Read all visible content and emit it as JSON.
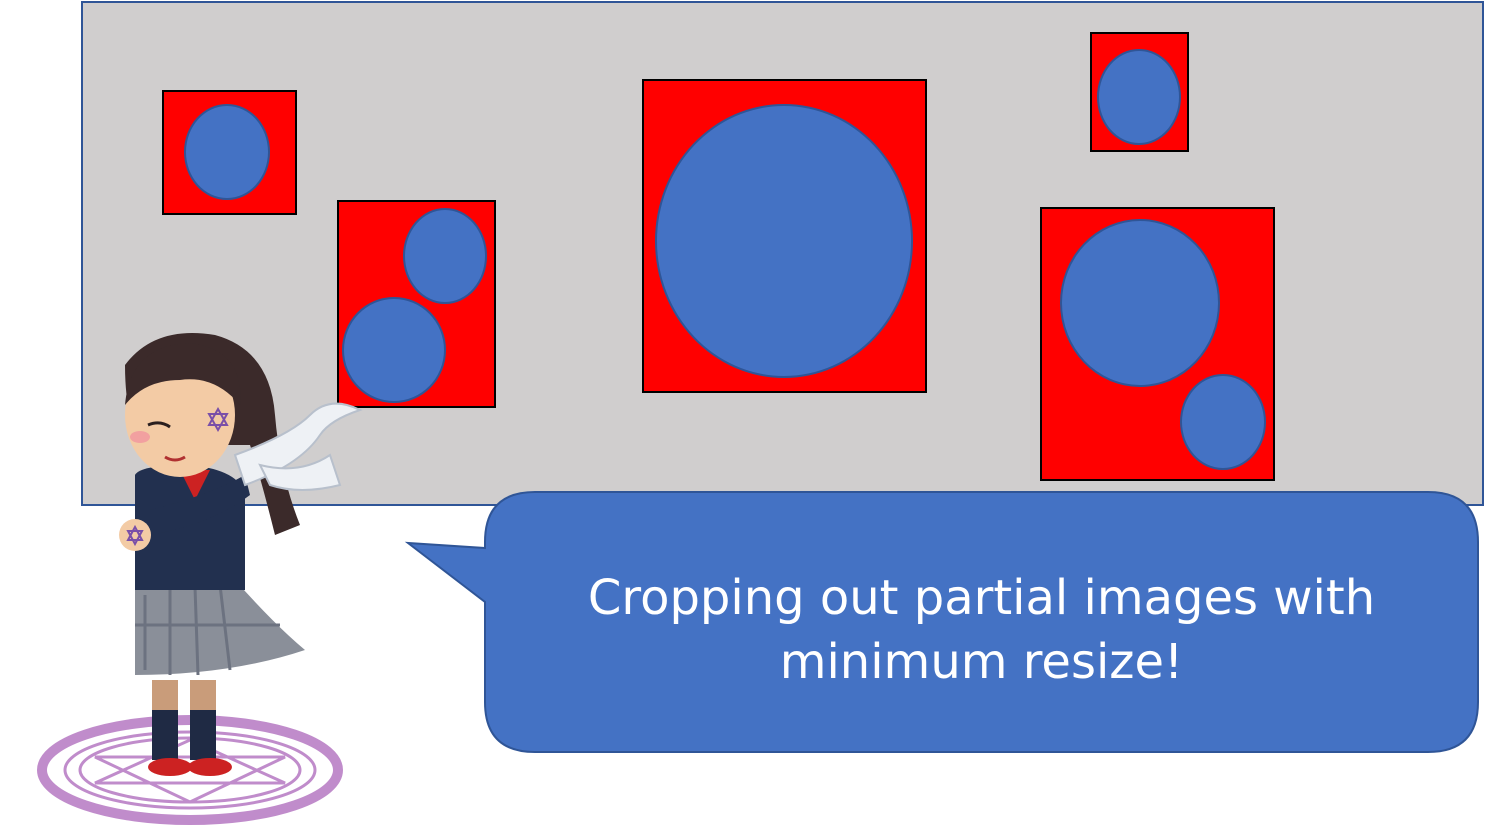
{
  "caption": {
    "line1": "Cropping out partial images with",
    "line2": "minimum resize!"
  },
  "colors": {
    "canvas": "#d0cece",
    "crop_box": "#ff0000",
    "circle": "#4472c4",
    "bubble": "#4472c4",
    "border": "#2f5597"
  },
  "scene": {
    "crop_box_count": 5,
    "character": "magical-girl-with-hexagram-circle"
  }
}
